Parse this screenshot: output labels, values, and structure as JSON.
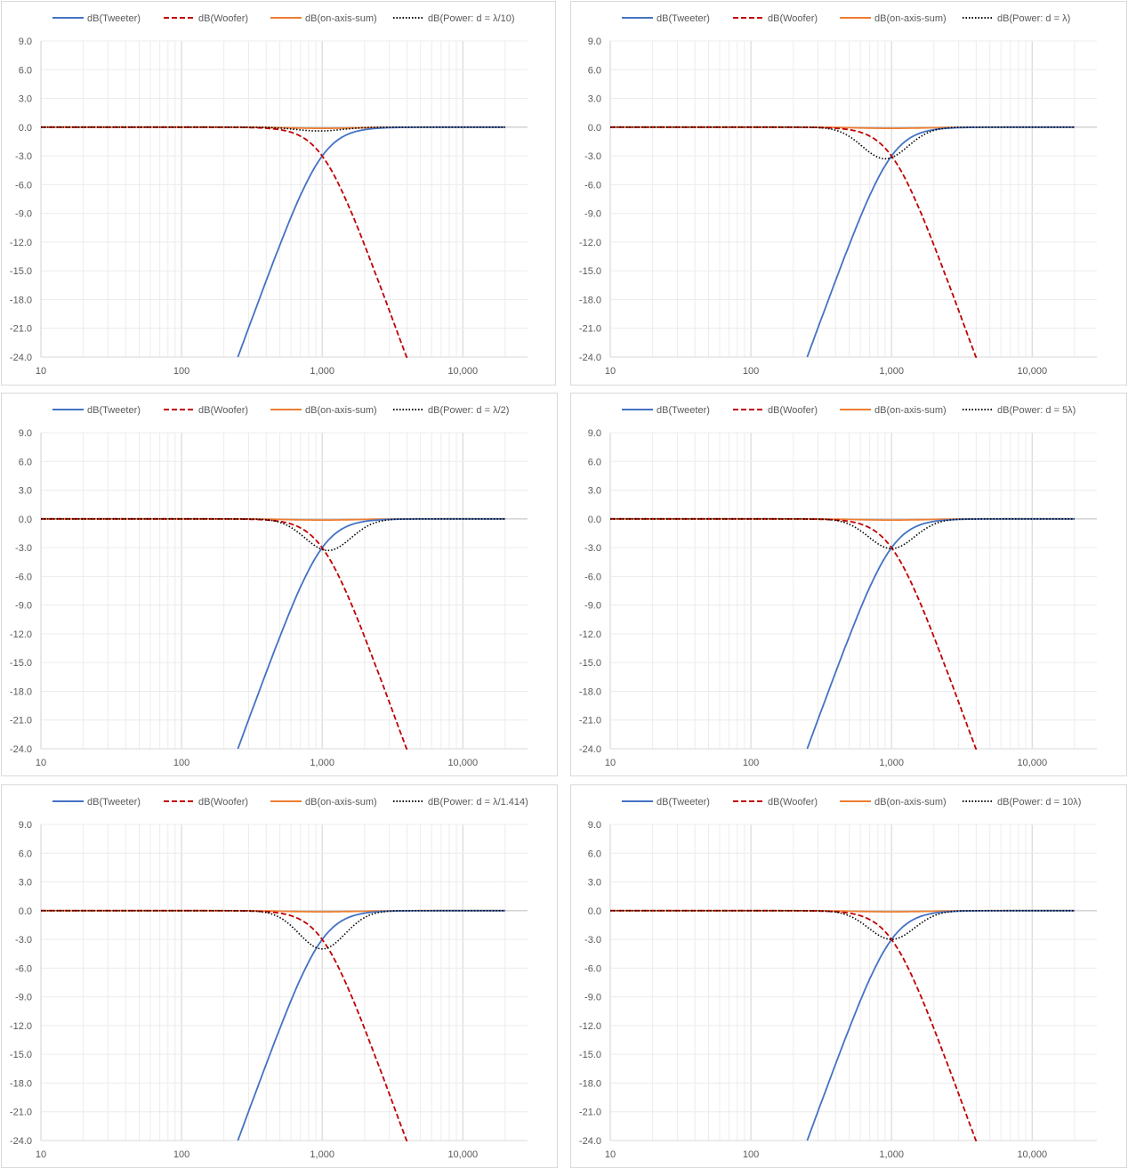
{
  "chart_data": [
    {
      "type": "line",
      "panel": "top-left",
      "xscale": "log",
      "xlim": [
        10,
        20000
      ],
      "ylim": [
        -24,
        9
      ],
      "x_ticks": [
        "10",
        "100",
        "1,000",
        "10,000"
      ],
      "y_ticks": [
        "9.0",
        "6.0",
        "3.0",
        "0.0",
        "-3.0",
        "-6.0",
        "-9.0",
        "-12.0",
        "-15.0",
        "-18.0",
        "-21.0",
        "-24.0"
      ],
      "grid": true,
      "legend": "top",
      "crossover_hz": 1000,
      "power_dip_db": -0.4,
      "power_dip_hz": 950,
      "series": [
        {
          "name": "dB(Tweeter)",
          "color": "#4472c4",
          "dash": "solid"
        },
        {
          "name": "dB(Woofer)",
          "color": "#c00000",
          "dash": "dashed"
        },
        {
          "name": "dB(on-axis-sum)",
          "color": "#ed7d31",
          "dash": "solid"
        },
        {
          "name": "dB(Power: d = λ/10)",
          "color": "#000000",
          "dash": "dotted"
        }
      ]
    },
    {
      "type": "line",
      "panel": "top-right",
      "xscale": "log",
      "xlim": [
        10,
        20000
      ],
      "ylim": [
        -24,
        9
      ],
      "x_ticks": [
        "10",
        "100",
        "1,000",
        "10,000"
      ],
      "y_ticks": [
        "9.0",
        "6.0",
        "3.0",
        "0.0",
        "-3.0",
        "-6.0",
        "-9.0",
        "-12.0",
        "-15.0",
        "-18.0",
        "-21.0",
        "-24.0"
      ],
      "grid": true,
      "legend": "top",
      "crossover_hz": 1000,
      "power_dip_db": -3.3,
      "power_dip_hz": 900,
      "series": [
        {
          "name": "dB(Tweeter)",
          "color": "#4472c4",
          "dash": "solid"
        },
        {
          "name": "dB(Woofer)",
          "color": "#c00000",
          "dash": "dashed"
        },
        {
          "name": "dB(on-axis-sum)",
          "color": "#ed7d31",
          "dash": "solid"
        },
        {
          "name": "dB(Power: d = λ)",
          "color": "#000000",
          "dash": "dotted"
        }
      ]
    },
    {
      "type": "line",
      "panel": "middle-left",
      "xscale": "log",
      "xlim": [
        10,
        20000
      ],
      "ylim": [
        -24,
        9
      ],
      "x_ticks": [
        "10",
        "100",
        "1,000",
        "10,000"
      ],
      "y_ticks": [
        "9.0",
        "6.0",
        "3.0",
        "0.0",
        "-3.0",
        "-6.0",
        "-9.0",
        "-12.0",
        "-15.0",
        "-18.0",
        "-21.0",
        "-24.0"
      ],
      "grid": true,
      "legend": "top",
      "crossover_hz": 1000,
      "power_dip_db": -3.3,
      "power_dip_hz": 1100,
      "series": [
        {
          "name": "dB(Tweeter)",
          "color": "#4472c4",
          "dash": "solid"
        },
        {
          "name": "dB(Woofer)",
          "color": "#c00000",
          "dash": "dashed"
        },
        {
          "name": "dB(on-axis-sum)",
          "color": "#ed7d31",
          "dash": "solid"
        },
        {
          "name": "dB(Power: d = λ/2)",
          "color": "#000000",
          "dash": "dotted"
        }
      ]
    },
    {
      "type": "line",
      "panel": "middle-right",
      "xscale": "log",
      "xlim": [
        10,
        20000
      ],
      "ylim": [
        -24,
        9
      ],
      "x_ticks": [
        "10",
        "100",
        "1,000",
        "10,000"
      ],
      "y_ticks": [
        "9.0",
        "6.0",
        "3.0",
        "0.0",
        "-3.0",
        "-6.0",
        "-9.0",
        "-12.0",
        "-15.0",
        "-18.0",
        "-21.0",
        "-24.0"
      ],
      "grid": true,
      "legend": "top",
      "crossover_hz": 1000,
      "power_dip_db": -3.1,
      "power_dip_hz": 1000,
      "series": [
        {
          "name": "dB(Tweeter)",
          "color": "#4472c4",
          "dash": "solid"
        },
        {
          "name": "dB(Woofer)",
          "color": "#c00000",
          "dash": "dashed"
        },
        {
          "name": "dB(on-axis-sum)",
          "color": "#ed7d31",
          "dash": "solid"
        },
        {
          "name": "dB(Power: d = 5λ)",
          "color": "#000000",
          "dash": "dotted"
        }
      ]
    },
    {
      "type": "line",
      "panel": "bottom-left",
      "xscale": "log",
      "xlim": [
        10,
        20000
      ],
      "ylim": [
        -24,
        9
      ],
      "x_ticks": [
        "10",
        "100",
        "1,000",
        "10,000"
      ],
      "y_ticks": [
        "9.0",
        "6.0",
        "3.0",
        "0.0",
        "-3.0",
        "-6.0",
        "-9.0",
        "-12.0",
        "-15.0",
        "-18.0",
        "-21.0",
        "-24.0"
      ],
      "grid": true,
      "legend": "top",
      "crossover_hz": 1000,
      "power_dip_db": -4.0,
      "power_dip_hz": 1000,
      "series": [
        {
          "name": "dB(Tweeter)",
          "color": "#4472c4",
          "dash": "solid"
        },
        {
          "name": "dB(Woofer)",
          "color": "#c00000",
          "dash": "dashed"
        },
        {
          "name": "dB(on-axis-sum)",
          "color": "#ed7d31",
          "dash": "solid"
        },
        {
          "name": "dB(Power: d = λ/1.414)",
          "color": "#000000",
          "dash": "dotted"
        }
      ]
    },
    {
      "type": "line",
      "panel": "bottom-right",
      "xscale": "log",
      "xlim": [
        10,
        20000
      ],
      "ylim": [
        -24,
        9
      ],
      "x_ticks": [
        "10",
        "100",
        "1,000",
        "10,000"
      ],
      "y_ticks": [
        "9.0",
        "6.0",
        "3.0",
        "0.0",
        "-3.0",
        "-6.0",
        "-9.0",
        "-12.0",
        "-15.0",
        "-18.0",
        "-21.0",
        "-24.0"
      ],
      "grid": true,
      "legend": "top",
      "crossover_hz": 1000,
      "power_dip_db": -3.0,
      "power_dip_hz": 1000,
      "series": [
        {
          "name": "dB(Tweeter)",
          "color": "#4472c4",
          "dash": "solid"
        },
        {
          "name": "dB(Woofer)",
          "color": "#c00000",
          "dash": "dashed"
        },
        {
          "name": "dB(on-axis-sum)",
          "color": "#ed7d31",
          "dash": "solid"
        },
        {
          "name": "dB(Power: d = 10λ)",
          "color": "#000000",
          "dash": "dotted"
        }
      ]
    }
  ]
}
